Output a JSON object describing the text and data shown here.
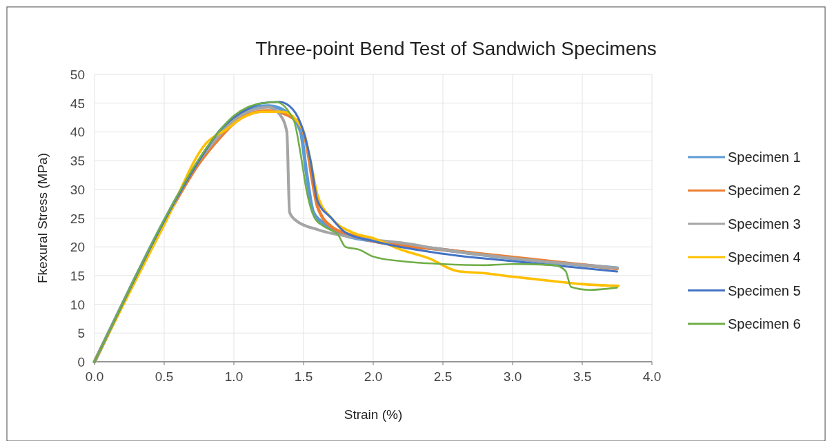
{
  "chart_data": {
    "type": "line",
    "title": "Three-point Bend Test of Sandwich Specimens",
    "xlabel": "Strain (%)",
    "ylabel": "Fkexural Stress (MPa)",
    "xlim": [
      0,
      4
    ],
    "xticks": [
      {
        "value": 0,
        "label": "0.0"
      },
      {
        "value": 0.5,
        "label": "0.5"
      },
      {
        "value": 1,
        "label": "1.0"
      },
      {
        "value": 1.5,
        "label": "1.5"
      },
      {
        "value": 2,
        "label": "2.0"
      },
      {
        "value": 2.5,
        "label": "2.5"
      },
      {
        "value": 3,
        "label": "3.0"
      },
      {
        "value": 3.5,
        "label": "3.5"
      },
      {
        "value": 4,
        "label": "4.0"
      }
    ],
    "ylim": [
      0,
      50
    ],
    "yticks": [
      0,
      5,
      10,
      15,
      20,
      25,
      30,
      35,
      40,
      45,
      50
    ],
    "grid": true,
    "legend": "right",
    "marker": "none",
    "line_style": "solid",
    "series": [
      {
        "name": "Specimen 1",
        "color": "#5b9bd5",
        "x": [
          0,
          0.25,
          0.5,
          0.75,
          0.9,
          1.0,
          1.1,
          1.25,
          1.4,
          1.48,
          1.52,
          1.57,
          1.65,
          1.8,
          2.0,
          2.5,
          3.0,
          3.75
        ],
        "values": [
          0,
          12.5,
          24.5,
          35,
          40,
          42.5,
          44,
          44.5,
          43,
          40,
          33,
          26,
          24,
          22,
          21,
          19.5,
          18,
          16.3
        ]
      },
      {
        "name": "Specimen 2",
        "color": "#ed7d31",
        "x": [
          0,
          0.25,
          0.5,
          0.75,
          0.9,
          1.0,
          1.1,
          1.25,
          1.45,
          1.52,
          1.56,
          1.6,
          1.7,
          1.85,
          2.0,
          2.5,
          3.0,
          3.75
        ],
        "values": [
          0,
          12.4,
          24.3,
          34.5,
          39,
          41.5,
          43,
          43.7,
          42,
          38,
          32,
          27,
          23.5,
          22,
          21,
          19.5,
          18.2,
          16.2
        ]
      },
      {
        "name": "Specimen 3",
        "color": "#a5a5a5",
        "x": [
          0,
          0.25,
          0.5,
          0.75,
          0.9,
          1.0,
          1.1,
          1.25,
          1.33,
          1.38,
          1.4,
          1.45,
          1.6,
          1.9,
          2.2,
          2.5,
          3.0,
          3.75
        ],
        "values": [
          0,
          12.5,
          24.5,
          35,
          39.5,
          42,
          43.5,
          44.3,
          43,
          40,
          26,
          24.5,
          23,
          21.5,
          20.7,
          19.5,
          18,
          16.3
        ]
      },
      {
        "name": "Specimen 4",
        "color": "#ffc000",
        "x": [
          0,
          0.25,
          0.5,
          0.8,
          0.95,
          1.05,
          1.2,
          1.35,
          1.45,
          1.5,
          1.55,
          1.6,
          1.7,
          1.85,
          2.0,
          2.2,
          2.4,
          2.6,
          2.8,
          3.0,
          3.3,
          3.5,
          3.76
        ],
        "values": [
          0,
          12,
          23.8,
          38,
          40.5,
          42.3,
          43.5,
          43.5,
          42,
          40,
          35,
          29,
          25,
          22.5,
          21.5,
          19.5,
          18,
          15.8,
          15.4,
          14.8,
          14,
          13.5,
          13.2
        ]
      },
      {
        "name": "Specimen 5",
        "color": "#4472c4",
        "x": [
          0,
          0.25,
          0.5,
          0.75,
          0.9,
          1.0,
          1.1,
          1.2,
          1.33,
          1.42,
          1.5,
          1.55,
          1.6,
          1.7,
          1.8,
          2.0,
          2.5,
          3.0,
          3.75
        ],
        "values": [
          0,
          12.5,
          24.5,
          35,
          40.3,
          42.5,
          44,
          45,
          45.2,
          44,
          40,
          35,
          28,
          25,
          22.5,
          21,
          18.8,
          17.5,
          15.7
        ]
      },
      {
        "name": "Specimen 6",
        "color": "#70ad47",
        "x": [
          0,
          0.25,
          0.5,
          0.75,
          0.9,
          1.0,
          1.1,
          1.2,
          1.3,
          1.43,
          1.48,
          1.52,
          1.58,
          1.65,
          1.75,
          1.8,
          1.9,
          2.0,
          2.2,
          2.5,
          2.8,
          3.0,
          3.3,
          3.38,
          3.42,
          3.55,
          3.75
        ],
        "values": [
          0,
          12.6,
          24.7,
          35.3,
          40.3,
          42.8,
          44.3,
          45,
          45.2,
          42,
          36,
          30,
          25,
          23.5,
          22,
          20,
          19.5,
          18.3,
          17.5,
          17,
          16.8,
          17,
          16.8,
          15.8,
          13,
          12.5,
          12.9
        ]
      }
    ]
  }
}
